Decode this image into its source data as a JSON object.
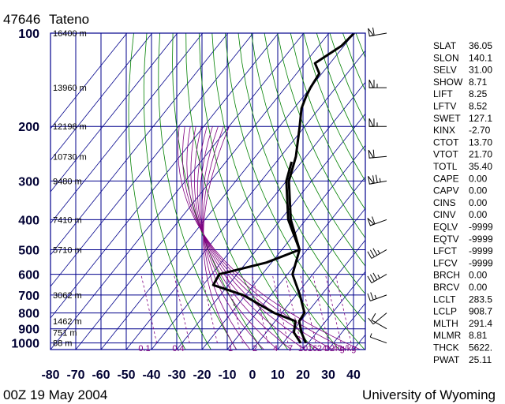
{
  "header": {
    "station_id": "47646",
    "station_name": "Tateno"
  },
  "footer": {
    "time": "00Z 19 May 2004",
    "credit": "University of Wyoming"
  },
  "chart_data": {
    "type": "skew-t",
    "pressure_levels": [
      100,
      200,
      300,
      400,
      500,
      600,
      700,
      800,
      900,
      1000
    ],
    "pressure_labels": [
      "100",
      "200",
      "300",
      "400",
      "500",
      "600",
      "700",
      "800",
      "900",
      "1000"
    ],
    "temp_ticks": [
      -80,
      -70,
      -60,
      -50,
      -40,
      -30,
      -20,
      -10,
      0,
      10,
      20,
      30,
      40
    ],
    "temp_labels": [
      "-80",
      "-70",
      "-60",
      "-50",
      "-40",
      "-30",
      "-20",
      "-10",
      "0",
      "10",
      "20",
      "30",
      "40"
    ],
    "height_labels": [
      {
        "p": 100,
        "text": "16400 m"
      },
      {
        "p": 150,
        "text": "13960 m"
      },
      {
        "p": 200,
        "text": "12198 m"
      },
      {
        "p": 250,
        "text": "10730 m"
      },
      {
        "p": 300,
        "text": "9480 m"
      },
      {
        "p": 400,
        "text": "7410 m"
      },
      {
        "p": 500,
        "text": "5710 m"
      },
      {
        "p": 700,
        "text": "3062 m"
      },
      {
        "p": 850,
        "text": "1462 m"
      },
      {
        "p": 925,
        "text": "751 m"
      },
      {
        "p": 1000,
        "text": "88 m"
      }
    ],
    "mixing_ratio_labels": [
      "0.1",
      "0.4",
      "1",
      "2",
      "4",
      "7",
      "10",
      "16",
      "24",
      "32",
      "40",
      "g/kg"
    ],
    "temperature_profile": [
      {
        "p": 100,
        "t": -60
      },
      {
        "p": 110,
        "t": -61
      },
      {
        "p": 125,
        "t": -66
      },
      {
        "p": 135,
        "t": -61
      },
      {
        "p": 150,
        "t": -60
      },
      {
        "p": 160,
        "t": -59
      },
      {
        "p": 175,
        "t": -57
      },
      {
        "p": 200,
        "t": -52
      },
      {
        "p": 250,
        "t": -44
      },
      {
        "p": 300,
        "t": -39
      },
      {
        "p": 400,
        "t": -26
      },
      {
        "p": 500,
        "t": -13
      },
      {
        "p": 600,
        "t": -8
      },
      {
        "p": 700,
        "t": 1.5
      },
      {
        "p": 800,
        "t": 9
      },
      {
        "p": 850,
        "t": 9.5
      },
      {
        "p": 925,
        "t": 14
      },
      {
        "p": 1000,
        "t": 19
      }
    ],
    "dewpoint_profile": [
      {
        "p": 260,
        "t": -44
      },
      {
        "p": 300,
        "t": -40
      },
      {
        "p": 400,
        "t": -27
      },
      {
        "p": 500,
        "t": -13
      },
      {
        "p": 550,
        "t": -22
      },
      {
        "p": 600,
        "t": -37
      },
      {
        "p": 650,
        "t": -36
      },
      {
        "p": 700,
        "t": -21
      },
      {
        "p": 800,
        "t": -3
      },
      {
        "p": 850,
        "t": 8
      },
      {
        "p": 925,
        "t": 11
      },
      {
        "p": 1000,
        "t": 17
      }
    ],
    "indices": [
      {
        "label": "SLAT",
        "value": "36.05"
      },
      {
        "label": "SLON",
        "value": "140.1"
      },
      {
        "label": "SELV",
        "value": "31.00"
      },
      {
        "label": "SHOW",
        "value": "8.71"
      },
      {
        "label": "LIFT",
        "value": "8.25"
      },
      {
        "label": "LFTV",
        "value": "8.52"
      },
      {
        "label": "SWET",
        "value": "127.1"
      },
      {
        "label": "KINX",
        "value": "-2.70"
      },
      {
        "label": "CTOT",
        "value": "13.70"
      },
      {
        "label": "VTOT",
        "value": "21.70"
      },
      {
        "label": "TOTL",
        "value": "35.40"
      },
      {
        "label": "CAPE",
        "value": "0.00"
      },
      {
        "label": "CAPV",
        "value": "0.00"
      },
      {
        "label": "CINS",
        "value": "0.00"
      },
      {
        "label": "CINV",
        "value": "0.00"
      },
      {
        "label": "EQLV",
        "value": "-9999"
      },
      {
        "label": "EQTV",
        "value": "-9999"
      },
      {
        "label": "LFCT",
        "value": "-9999"
      },
      {
        "label": "LFCV",
        "value": "-9999"
      },
      {
        "label": "BRCH",
        "value": "0.00"
      },
      {
        "label": "BRCV",
        "value": "0.00"
      },
      {
        "label": "LCLT",
        "value": "283.5"
      },
      {
        "label": "LCLP",
        "value": "908.7"
      },
      {
        "label": "MLTH",
        "value": "291.4"
      },
      {
        "label": "MLMR",
        "value": "8.81"
      },
      {
        "label": "THCK",
        "value": "5622."
      },
      {
        "label": "PWAT",
        "value": "25.11"
      }
    ],
    "wind_barbs": [
      {
        "p": 100,
        "dir": 260,
        "spd": 60
      },
      {
        "p": 150,
        "dir": 270,
        "spd": 65
      },
      {
        "p": 200,
        "dir": 270,
        "spd": 65
      },
      {
        "p": 250,
        "dir": 265,
        "spd": 60
      },
      {
        "p": 300,
        "dir": 260,
        "spd": 75
      },
      {
        "p": 400,
        "dir": 250,
        "spd": 60
      },
      {
        "p": 500,
        "dir": 240,
        "spd": 35
      },
      {
        "p": 600,
        "dir": 240,
        "spd": 35
      },
      {
        "p": 700,
        "dir": 250,
        "spd": 25
      },
      {
        "p": 800,
        "dir": 230,
        "spd": 10
      },
      {
        "p": 900,
        "dir": 300,
        "spd": 10
      },
      {
        "p": 1000,
        "dir": 290,
        "spd": 5
      }
    ],
    "colors": {
      "grid": "#00008b",
      "dry_adiabat": "#008000",
      "moist_adiabat": "#800080",
      "mixing_ratio": "#800080",
      "skew_isotherm": "#00008b",
      "profile": "#000000"
    }
  }
}
